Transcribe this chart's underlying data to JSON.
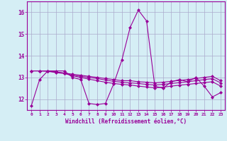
{
  "xlabel": "Windchill (Refroidissement éolien,°C)",
  "x": [
    0,
    1,
    2,
    3,
    4,
    5,
    6,
    7,
    8,
    9,
    10,
    11,
    12,
    13,
    14,
    15,
    16,
    17,
    18,
    19,
    20,
    21,
    22,
    23
  ],
  "line1": [
    11.7,
    12.9,
    13.3,
    13.3,
    13.3,
    13.0,
    12.9,
    11.8,
    11.75,
    11.8,
    12.7,
    13.8,
    15.3,
    16.1,
    15.6,
    12.6,
    12.5,
    12.8,
    12.9,
    12.8,
    13.0,
    12.6,
    12.1,
    12.3
  ],
  "line2": [
    13.3,
    13.3,
    13.3,
    13.25,
    13.2,
    13.15,
    13.1,
    13.05,
    13.0,
    12.95,
    12.9,
    12.85,
    12.85,
    12.8,
    12.78,
    12.75,
    12.78,
    12.82,
    12.86,
    12.9,
    12.95,
    13.0,
    13.05,
    12.85
  ],
  "line3": [
    13.3,
    13.3,
    13.3,
    13.25,
    13.2,
    13.1,
    13.05,
    13.0,
    12.95,
    12.88,
    12.82,
    12.78,
    12.75,
    12.72,
    12.68,
    12.65,
    12.68,
    12.72,
    12.76,
    12.8,
    12.85,
    12.9,
    12.94,
    12.75
  ],
  "line4": [
    13.3,
    13.3,
    13.28,
    13.22,
    13.18,
    13.08,
    13.0,
    12.92,
    12.85,
    12.78,
    12.72,
    12.68,
    12.65,
    12.6,
    12.56,
    12.52,
    12.55,
    12.6,
    12.64,
    12.68,
    12.72,
    12.76,
    12.8,
    12.6
  ],
  "line_color": "#990099",
  "bg_color": "#d5eef5",
  "grid_color": "#aaaacc",
  "ylim": [
    11.5,
    16.5
  ],
  "yticks": [
    12,
    13,
    14,
    15,
    16
  ],
  "marker": "D",
  "markersize": 2.0,
  "linewidth": 0.8
}
